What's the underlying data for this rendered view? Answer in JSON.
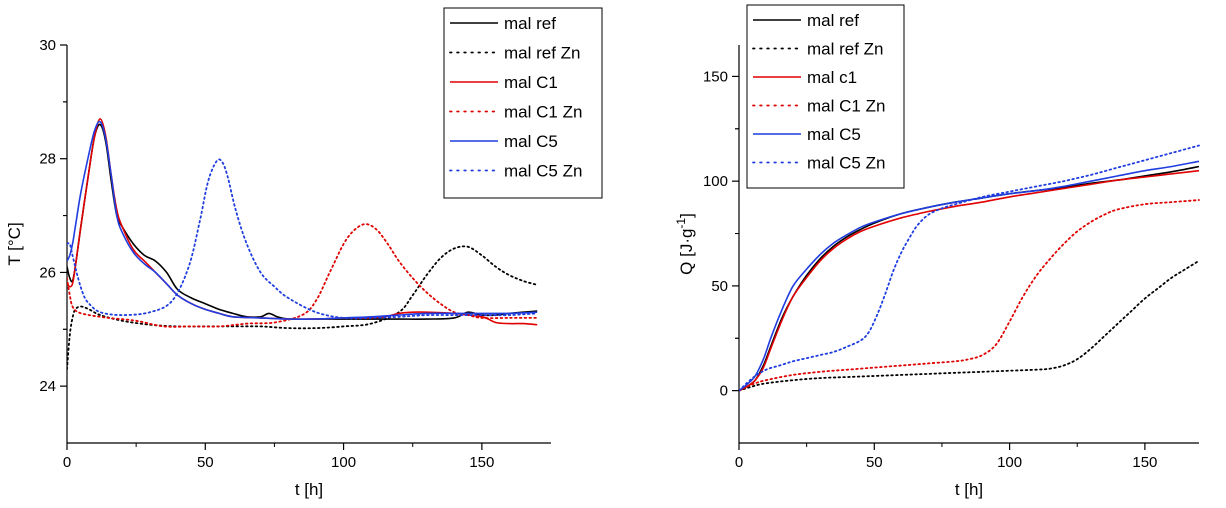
{
  "chart_data": [
    {
      "type": "line",
      "xlabel": "t [h]",
      "ylabel": "T [°C]",
      "xlim": [
        0,
        175
      ],
      "ylim": [
        23,
        30
      ],
      "xticks": [
        0,
        50,
        100,
        150
      ],
      "yticks": [
        24,
        26,
        28,
        30
      ],
      "grid": false,
      "legend_position": "top-right",
      "series": [
        {
          "name": "mal ref",
          "color": "#000000",
          "style": "solid",
          "x": [
            0,
            1,
            2,
            3,
            5,
            8,
            10,
            12,
            14,
            16,
            18,
            20,
            24,
            28,
            32,
            36,
            40,
            45,
            50,
            55,
            60,
            65,
            70,
            73,
            76,
            80,
            90,
            100,
            110,
            120,
            130,
            140,
            145,
            150,
            155,
            160,
            165,
            170
          ],
          "y": [
            26.1,
            25.9,
            25.85,
            26.1,
            26.8,
            27.8,
            28.4,
            28.6,
            28.3,
            27.6,
            27.0,
            26.8,
            26.5,
            26.3,
            26.2,
            26.0,
            25.7,
            25.55,
            25.45,
            25.35,
            25.28,
            25.22,
            25.22,
            25.28,
            25.22,
            25.18,
            25.18,
            25.18,
            25.18,
            25.18,
            25.18,
            25.2,
            25.3,
            25.25,
            25.25,
            25.28,
            25.3,
            25.32
          ]
        },
        {
          "name": "mal ref Zn",
          "color": "#000000",
          "style": "dotted",
          "x": [
            0,
            1,
            2,
            3,
            5,
            8,
            12,
            20,
            30,
            40,
            50,
            60,
            70,
            80,
            90,
            100,
            110,
            120,
            125,
            130,
            135,
            140,
            145,
            150,
            155,
            160,
            165,
            170
          ],
          "y": [
            24.3,
            24.9,
            25.2,
            25.35,
            25.4,
            25.35,
            25.25,
            25.15,
            25.08,
            25.05,
            25.05,
            25.05,
            25.05,
            25.02,
            25.02,
            25.05,
            25.1,
            25.3,
            25.6,
            25.95,
            26.25,
            26.42,
            26.45,
            26.3,
            26.1,
            25.95,
            25.85,
            25.78
          ]
        },
        {
          "name": "mal C1",
          "color": "#e00000",
          "style": "solid",
          "x": [
            0,
            1,
            2,
            3,
            5,
            8,
            10,
            12,
            14,
            16,
            18,
            20,
            24,
            28,
            32,
            36,
            40,
            45,
            50,
            55,
            60,
            70,
            80,
            90,
            100,
            110,
            115,
            120,
            125,
            130,
            140,
            150,
            155,
            160,
            165,
            170
          ],
          "y": [
            25.8,
            25.75,
            25.8,
            26.1,
            26.8,
            27.8,
            28.4,
            28.7,
            28.4,
            27.7,
            27.1,
            26.8,
            26.4,
            26.2,
            26.0,
            25.8,
            25.6,
            25.45,
            25.35,
            25.28,
            25.22,
            25.2,
            25.18,
            25.18,
            25.2,
            25.2,
            25.22,
            25.28,
            25.3,
            25.3,
            25.28,
            25.22,
            25.12,
            25.1,
            25.1,
            25.08
          ]
        },
        {
          "name": "mal C1 Zn",
          "color": "#e00000",
          "style": "dotted",
          "x": [
            0,
            1,
            2,
            4,
            8,
            15,
            25,
            35,
            45,
            55,
            65,
            75,
            85,
            90,
            95,
            100,
            104,
            108,
            112,
            116,
            120,
            125,
            130,
            135,
            140,
            145,
            150,
            160,
            170
          ],
          "y": [
            25.9,
            25.6,
            25.4,
            25.3,
            25.25,
            25.2,
            25.15,
            25.05,
            25.05,
            25.05,
            25.1,
            25.12,
            25.25,
            25.5,
            26.0,
            26.5,
            26.75,
            26.85,
            26.75,
            26.5,
            26.2,
            25.9,
            25.65,
            25.45,
            25.3,
            25.25,
            25.2,
            25.2,
            25.2
          ]
        },
        {
          "name": "mal C5",
          "color": "#1f3de0",
          "style": "solid",
          "x": [
            0,
            1,
            2,
            3,
            5,
            8,
            10,
            12,
            14,
            16,
            18,
            20,
            24,
            28,
            32,
            36,
            40,
            45,
            50,
            55,
            60,
            70,
            80,
            90,
            100,
            110,
            120,
            130,
            140,
            150,
            160,
            170
          ],
          "y": [
            26.2,
            26.3,
            26.5,
            26.8,
            27.4,
            28.1,
            28.5,
            28.65,
            28.35,
            27.7,
            27.0,
            26.7,
            26.35,
            26.15,
            26.0,
            25.8,
            25.6,
            25.45,
            25.35,
            25.28,
            25.22,
            25.2,
            25.18,
            25.18,
            25.2,
            25.22,
            25.25,
            25.28,
            25.28,
            25.28,
            25.28,
            25.3
          ]
        },
        {
          "name": "mal C5 Zn",
          "color": "#1f3de0",
          "style": "dotted",
          "x": [
            0,
            1,
            2,
            4,
            6,
            8,
            12,
            20,
            30,
            38,
            44,
            48,
            51,
            54,
            56,
            58,
            61,
            65,
            70,
            75,
            80,
            90,
            100,
            110,
            120,
            130,
            140,
            150,
            160,
            170
          ],
          "y": [
            26.5,
            26.5,
            26.3,
            25.9,
            25.6,
            25.45,
            25.3,
            25.25,
            25.3,
            25.5,
            26.1,
            26.9,
            27.6,
            27.95,
            27.95,
            27.7,
            27.1,
            26.5,
            26.0,
            25.75,
            25.55,
            25.3,
            25.2,
            25.2,
            25.22,
            25.25,
            25.25,
            25.25,
            25.25,
            25.28
          ]
        }
      ]
    },
    {
      "type": "line",
      "xlabel": "t [h]",
      "ylabel": "Q [J·g",
      "ylabel_sup": "-1",
      "ylabel_end": "]",
      "xlim": [
        0,
        170
      ],
      "ylim": [
        -25,
        165
      ],
      "xticks": [
        0,
        50,
        100,
        150
      ],
      "yticks": [
        0,
        50,
        100,
        150
      ],
      "grid": false,
      "legend_position": "top-left",
      "series": [
        {
          "name": "mal ref",
          "color": "#000000",
          "style": "solid",
          "x": [
            0,
            3,
            6,
            9,
            12,
            16,
            20,
            25,
            30,
            35,
            40,
            45,
            50,
            60,
            70,
            80,
            90,
            100,
            110,
            120,
            130,
            140,
            150,
            160,
            170
          ],
          "y": [
            0,
            2,
            5,
            12,
            22,
            35,
            45,
            55,
            63,
            69,
            73.5,
            77,
            80,
            84.5,
            87.5,
            90,
            92,
            94,
            95.5,
            97,
            99,
            100.5,
            102.5,
            104.5,
            107
          ]
        },
        {
          "name": "mal ref Zn",
          "color": "#000000",
          "style": "dotted",
          "x": [
            0,
            5,
            10,
            20,
            30,
            40,
            50,
            60,
            70,
            80,
            90,
            100,
            110,
            115,
            120,
            125,
            130,
            135,
            140,
            145,
            150,
            155,
            160,
            165,
            170
          ],
          "y": [
            0,
            2,
            3.5,
            5,
            6,
            6.5,
            7,
            7.5,
            8,
            8.5,
            9,
            9.5,
            10,
            10.5,
            12,
            15,
            20,
            26,
            32,
            38,
            44,
            49,
            54,
            58,
            62
          ]
        },
        {
          "name": "mal c1",
          "color": "#e00000",
          "style": "solid",
          "x": [
            0,
            3,
            6,
            9,
            12,
            16,
            20,
            25,
            30,
            35,
            40,
            45,
            50,
            60,
            70,
            80,
            90,
            100,
            110,
            120,
            130,
            140,
            150,
            160,
            170
          ],
          "y": [
            0,
            2,
            5,
            11,
            21,
            34,
            45,
            54,
            62,
            68,
            72.5,
            76,
            78.5,
            82.5,
            85.5,
            88,
            90,
            92.5,
            94.5,
            96.5,
            98.5,
            100.5,
            102,
            103.5,
            105
          ]
        },
        {
          "name": "mal C1 Zn",
          "color": "#e00000",
          "style": "dotted",
          "x": [
            0,
            5,
            10,
            20,
            30,
            40,
            50,
            60,
            70,
            80,
            85,
            90,
            95,
            100,
            105,
            110,
            115,
            120,
            125,
            130,
            135,
            140,
            150,
            160,
            170
          ],
          "y": [
            0,
            3,
            5,
            7.5,
            9,
            10,
            11,
            12,
            13,
            14,
            15,
            17,
            22,
            33,
            45,
            55,
            63,
            70,
            76,
            80.5,
            84,
            86.5,
            89,
            90,
            91
          ]
        },
        {
          "name": "mal C5",
          "color": "#1f3de0",
          "style": "solid",
          "x": [
            0,
            3,
            6,
            9,
            12,
            16,
            20,
            25,
            30,
            35,
            40,
            45,
            50,
            60,
            70,
            80,
            90,
            100,
            110,
            120,
            130,
            140,
            150,
            160,
            170
          ],
          "y": [
            0,
            3,
            7,
            15,
            26,
            39,
            50,
            58,
            65,
            70.5,
            74.5,
            78,
            80.5,
            84.5,
            87.5,
            90,
            92,
            94,
            95.5,
            97.5,
            100,
            102.5,
            105,
            107,
            109.5
          ]
        },
        {
          "name": "mal C5 Zn",
          "color": "#1f3de0",
          "style": "dotted",
          "x": [
            0,
            5,
            10,
            15,
            20,
            25,
            30,
            35,
            40,
            45,
            48,
            51,
            54,
            57,
            60,
            63,
            66,
            70,
            75,
            80,
            90,
            100,
            110,
            120,
            130,
            140,
            150,
            160,
            170
          ],
          "y": [
            0,
            6,
            10,
            12,
            14,
            15.5,
            17,
            18.5,
            21,
            24,
            28,
            36,
            46,
            57,
            66,
            73,
            79,
            84,
            87,
            89,
            92.5,
            95,
            97.5,
            100,
            103,
            106.5,
            110,
            113.5,
            117
          ]
        }
      ]
    }
  ]
}
